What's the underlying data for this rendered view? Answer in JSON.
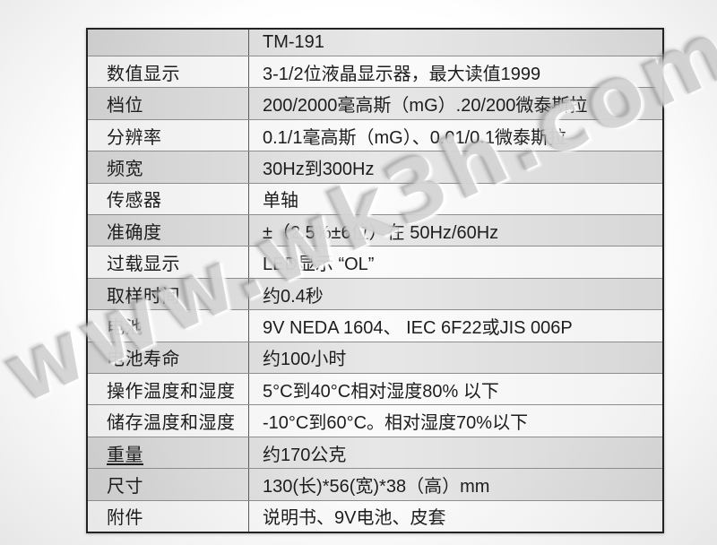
{
  "table": {
    "header": {
      "label": "",
      "value": "TM-191"
    },
    "rows": [
      {
        "label": "数值显示",
        "value": "3-1/2位液晶显示器，最大读值1999",
        "shaded": false
      },
      {
        "label": "档位",
        "value": "200/2000毫高斯（mG）.20/200微泰斯拉",
        "shaded": true
      },
      {
        "label": "分辨率",
        "value": "0.1/1毫高斯（mG）、0.01/0.1微泰斯拉",
        "shaded": false
      },
      {
        "label": "频宽",
        "value": "30Hz到300Hz",
        "shaded": true
      },
      {
        "label": "传感器",
        "value": "单轴",
        "shaded": false
      },
      {
        "label": "准确度",
        "value": "±（2.5%±6位）在 50Hz/60Hz",
        "shaded": true
      },
      {
        "label": "过载显示",
        "value": "LED显示 “OL”",
        "shaded": false
      },
      {
        "label": "取样时间",
        "value": "约0.4秒",
        "shaded": true
      },
      {
        "label": "电池",
        "value": "9V NEDA  1604、 IEC 6F22或JIS 006P",
        "shaded": false
      },
      {
        "label": "电池寿命",
        "value": "约100小时",
        "shaded": true
      },
      {
        "label": "操作温度和湿度",
        "value": "5°C到40°C相对湿度80% 以下",
        "shaded": false
      },
      {
        "label": "储存温度和湿度",
        "value": "-10°C到60°C。相对湿度70%以下",
        "shaded": false
      },
      {
        "label": "重量",
        "value": "约170公克",
        "shaded": true,
        "underline": true
      },
      {
        "label": "尺寸",
        "value": "130(长)*56(宽)*38（高）mm",
        "shaded": true
      },
      {
        "label": "附件",
        "value": "说明书、9V电池、皮套",
        "shaded": false
      }
    ]
  },
  "watermark": {
    "text": "www.wk3h.com.cn",
    "color": "#a3a3a3"
  }
}
